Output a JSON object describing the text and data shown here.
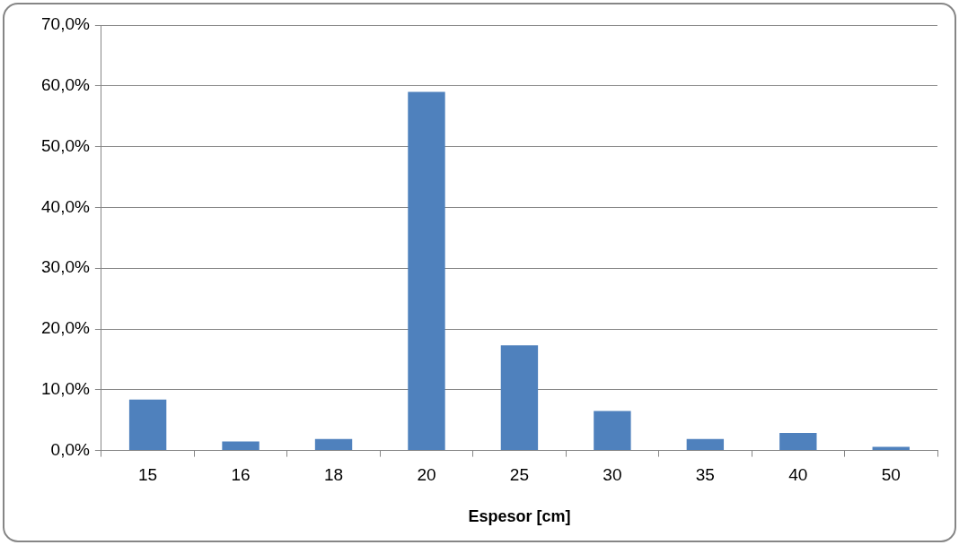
{
  "chart_data": {
    "type": "bar",
    "xlabel": "Espesor [cm]",
    "categories": [
      "15",
      "16",
      "18",
      "20",
      "25",
      "30",
      "35",
      "40",
      "50"
    ],
    "values": [
      8.4,
      1.5,
      1.9,
      59.0,
      17.3,
      6.5,
      1.9,
      2.9,
      0.6
    ],
    "color": "#4f81bd",
    "ylim": [
      0,
      70
    ],
    "yticks": [
      {
        "value": 0,
        "label": "0,0%"
      },
      {
        "value": 10,
        "label": "10,0%"
      },
      {
        "value": 20,
        "label": "20,0%"
      },
      {
        "value": 30,
        "label": "30,0%"
      },
      {
        "value": 40,
        "label": "40,0%"
      },
      {
        "value": 50,
        "label": "50,0%"
      },
      {
        "value": 60,
        "label": "60,0%"
      },
      {
        "value": 70,
        "label": "70,0%"
      }
    ],
    "grid": "y"
  }
}
